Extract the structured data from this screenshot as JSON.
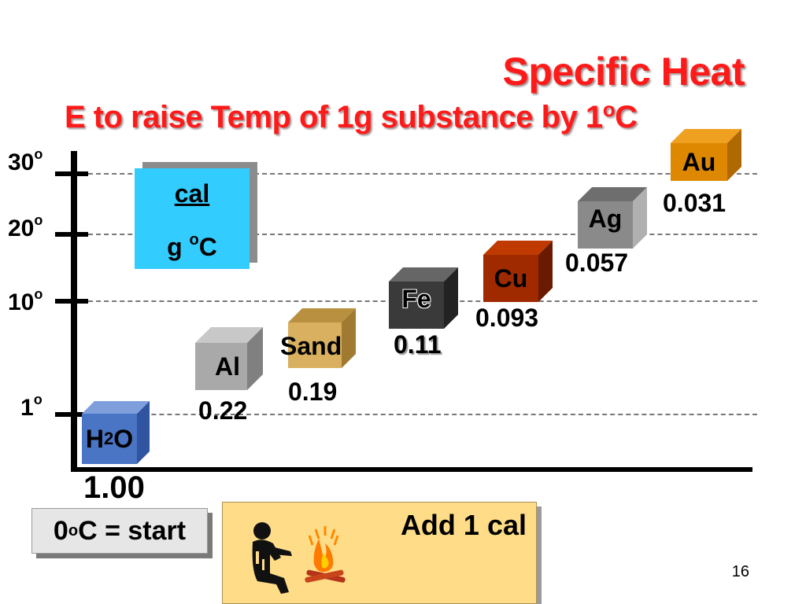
{
  "title": "Specific Heat",
  "subtitle": {
    "text": "E to raise Temp of 1g substance by 1",
    "sup": "o",
    "tail": "C"
  },
  "y_axis": {
    "ticks": [
      {
        "num": "30",
        "sup": "o"
      },
      {
        "num": "20",
        "sup": "o"
      },
      {
        "num": "10",
        "sup": "o"
      },
      {
        "num": "1",
        "sup": "o"
      }
    ]
  },
  "unit": {
    "numerator": "cal",
    "den_pre": "g ",
    "den_sup": "o",
    "den_post": "C"
  },
  "substances": [
    {
      "name": "H",
      "sub": "2",
      "tail": "O",
      "value": "1.00",
      "color": "#4a74c4"
    },
    {
      "name": "Al",
      "value": "0.22",
      "color": "#a9a9a9"
    },
    {
      "name": "Sand",
      "value": "0.19",
      "color": "#c8a050"
    },
    {
      "name": "Fe",
      "value": "0.11",
      "color": "#3a3a3a"
    },
    {
      "name": "Cu",
      "value": "0.093",
      "color": "#a02a00"
    },
    {
      "name": "Ag",
      "value": "0.057",
      "color": "#8a8a8a"
    },
    {
      "name": "Au",
      "value": "0.031",
      "color": "#dd8800"
    }
  ],
  "start": {
    "num": "0",
    "sup": "o",
    "tail": "C = start"
  },
  "add_cal": "Add 1 cal",
  "illustration_icon": "person-campfire-icon",
  "page_number": "16"
}
